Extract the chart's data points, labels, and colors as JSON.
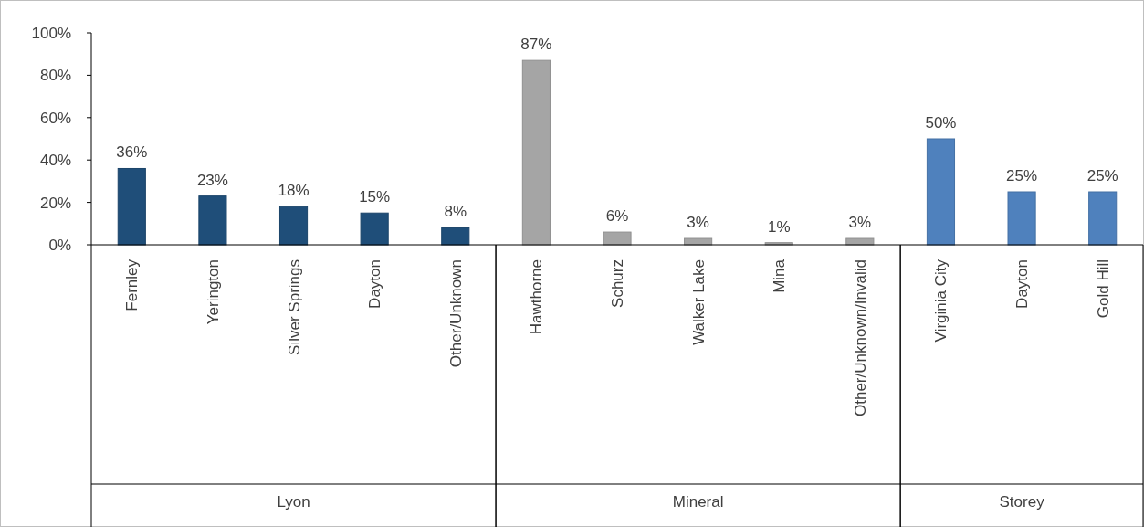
{
  "chart_data": {
    "type": "bar",
    "categories": [
      "Fernley",
      "Yerington",
      "Silver Springs",
      "Dayton",
      "Other/Unknown",
      "Hawthorne",
      "Schurz",
      "Walker Lake",
      "Mina",
      "Other/Unknown/Invalid",
      "Virginia City",
      "Dayton",
      "Gold Hill"
    ],
    "series": [
      {
        "color": "#1f4e79",
        "values": [
          36,
          23,
          18,
          15,
          8,
          null,
          null,
          null,
          null,
          null,
          null,
          null,
          null
        ],
        "value_labels": [
          "36%",
          "23%",
          "18%",
          "15%",
          "8%",
          null,
          null,
          null,
          null,
          null,
          null,
          null,
          null
        ]
      },
      {
        "color": "#a5a5a5",
        "values": [
          null,
          null,
          null,
          null,
          null,
          87,
          6,
          3,
          1,
          3,
          null,
          null,
          null
        ],
        "value_labels": [
          null,
          null,
          null,
          null,
          null,
          "87%",
          "6%",
          "3%",
          "1%",
          "3%",
          null,
          null,
          null
        ]
      },
      {
        "color": "#4f81bd",
        "values": [
          null,
          null,
          null,
          null,
          null,
          null,
          null,
          null,
          null,
          null,
          50,
          25,
          25
        ],
        "value_labels": [
          null,
          null,
          null,
          null,
          null,
          null,
          null,
          null,
          null,
          null,
          "50%",
          "25%",
          "25%"
        ]
      }
    ],
    "annotations": [
      "Lyon",
      "Mineral",
      "Storey"
    ],
    "ylim": [
      0,
      100
    ],
    "yticks": [
      {
        "value": 0,
        "label": "0%"
      },
      {
        "value": 20,
        "label": "20%"
      },
      {
        "value": 40,
        "label": "40%"
      },
      {
        "value": 60,
        "label": "60%"
      },
      {
        "value": 80,
        "label": "80%"
      },
      {
        "value": 100,
        "label": "100%"
      }
    ],
    "grid": false
  }
}
